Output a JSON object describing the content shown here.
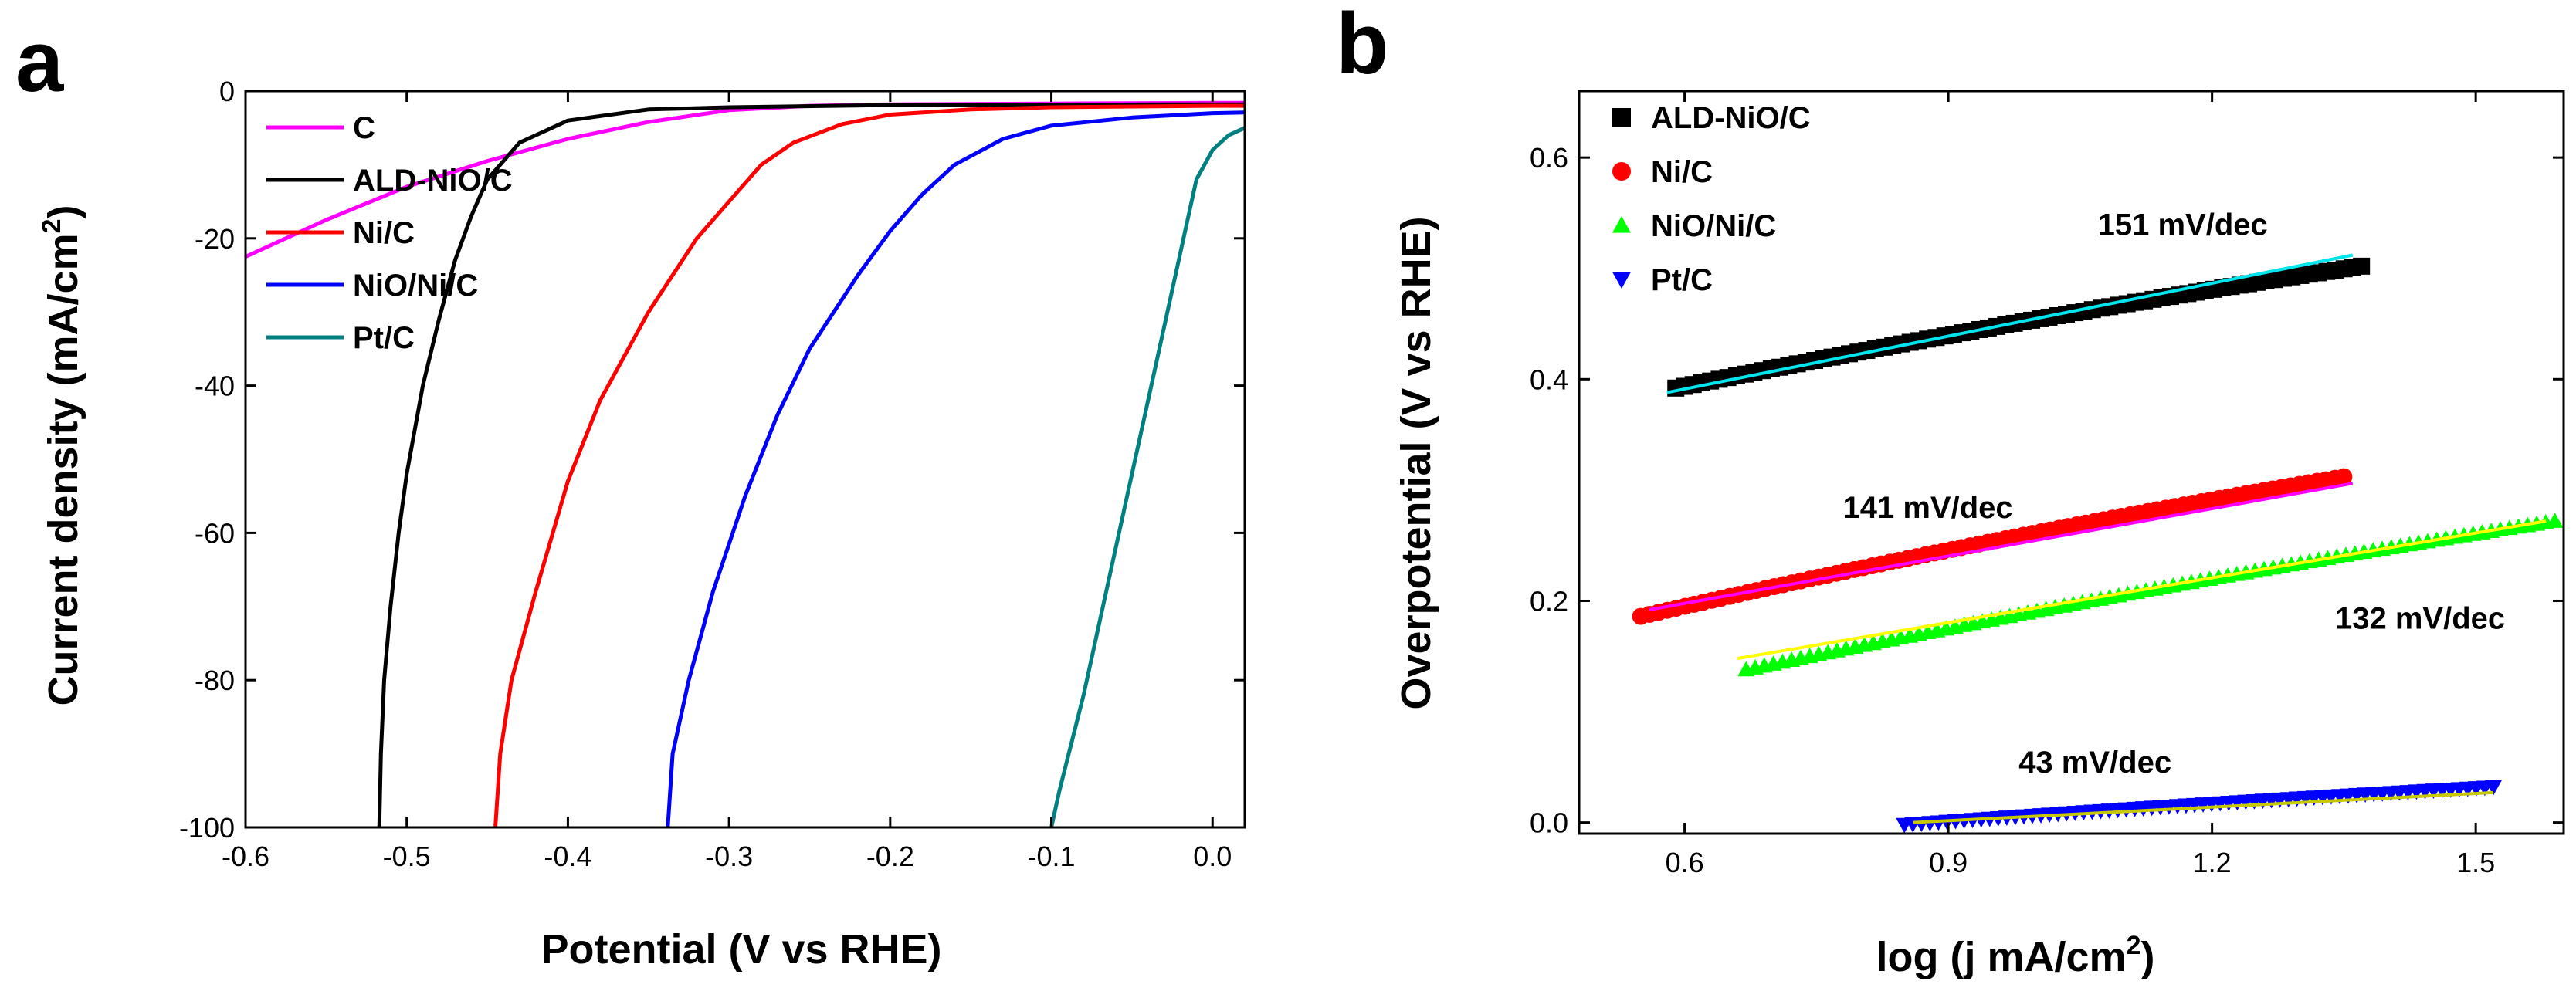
{
  "chart_data": [
    {
      "id": "a",
      "panel_label": "a",
      "type": "line",
      "xlabel": "Potential (V vs RHE)",
      "ylabel_main": "Current density (mA/cm",
      "ylabel_sup": "2",
      "ylabel_end": ")",
      "xlim": [
        -0.6,
        0.02
      ],
      "ylim": [
        -100,
        0
      ],
      "xticks": [
        -0.6,
        -0.5,
        -0.4,
        -0.3,
        -0.2,
        -0.1,
        0.0
      ],
      "xtick_labels": [
        "-0.6",
        "-0.5",
        "-0.4",
        "-0.3",
        "-0.2",
        "-0.1",
        "0.0"
      ],
      "yticks": [
        0,
        -20,
        -40,
        -60,
        -80,
        -100
      ],
      "ytick_labels": [
        "0",
        "-20",
        "-40",
        "-60",
        "-80",
        "-100"
      ],
      "legend_position": "top-left",
      "series": [
        {
          "name": "C",
          "color": "#ff00ff",
          "x": [
            -0.6,
            -0.55,
            -0.5,
            -0.45,
            -0.4,
            -0.35,
            -0.3,
            -0.25,
            -0.2,
            -0.1,
            0.0,
            0.02
          ],
          "y": [
            -22.5,
            -17.5,
            -13.0,
            -9.5,
            -6.5,
            -4.2,
            -2.6,
            -2.0,
            -1.8,
            -1.7,
            -1.6,
            -1.6
          ]
        },
        {
          "name": "ALD-NiO/C",
          "color": "#000000",
          "x": [
            -0.517,
            -0.516,
            -0.514,
            -0.51,
            -0.505,
            -0.5,
            -0.49,
            -0.48,
            -0.47,
            -0.46,
            -0.45,
            -0.43,
            -0.4,
            -0.35,
            -0.3,
            -0.2,
            0.0,
            0.02
          ],
          "y": [
            -100,
            -90,
            -80,
            -70,
            -60,
            -52,
            -40,
            -31,
            -23,
            -17,
            -12,
            -7,
            -4,
            -2.5,
            -2.2,
            -1.9,
            -1.8,
            -1.8
          ]
        },
        {
          "name": "Ni/C",
          "color": "#ff0000",
          "x": [
            -0.445,
            -0.442,
            -0.435,
            -0.42,
            -0.4,
            -0.38,
            -0.35,
            -0.32,
            -0.3,
            -0.28,
            -0.26,
            -0.23,
            -0.2,
            -0.15,
            -0.1,
            0.0,
            0.02
          ],
          "y": [
            -100,
            -90,
            -80,
            -68,
            -53,
            -42,
            -30,
            -20,
            -15,
            -10,
            -7,
            -4.5,
            -3.2,
            -2.5,
            -2.2,
            -2.0,
            -2.0
          ]
        },
        {
          "name": "NiO/Ni/C",
          "color": "#0000ff",
          "x": [
            -0.338,
            -0.335,
            -0.325,
            -0.31,
            -0.29,
            -0.27,
            -0.25,
            -0.22,
            -0.2,
            -0.18,
            -0.16,
            -0.13,
            -0.1,
            -0.05,
            0.0,
            0.02
          ],
          "y": [
            -100,
            -90,
            -80,
            -68,
            -55,
            -44,
            -35,
            -25,
            -19,
            -14,
            -10,
            -6.5,
            -4.7,
            -3.6,
            -3.0,
            -2.9
          ]
        },
        {
          "name": "Pt/C",
          "color": "#008080",
          "x": [
            -0.1,
            -0.095,
            -0.08,
            -0.06,
            -0.04,
            -0.02,
            -0.01,
            0.0,
            0.01,
            0.02
          ],
          "y": [
            -100,
            -95,
            -82,
            -62,
            -42,
            -22,
            -12,
            -8,
            -6,
            -5
          ]
        }
      ]
    },
    {
      "id": "b",
      "panel_label": "b",
      "type": "scatter",
      "xlabel_main": "log (j mA/cm",
      "xlabel_sup": "2",
      "xlabel_end": ")",
      "ylabel": "Overpotential (V vs RHE)",
      "xlim": [
        0.48,
        1.6
      ],
      "ylim": [
        -0.01,
        0.66
      ],
      "xticks": [
        0.6,
        0.9,
        1.2,
        1.5
      ],
      "xtick_labels": [
        "0.6",
        "0.9",
        "1.2",
        "1.5"
      ],
      "yticks": [
        0.0,
        0.2,
        0.4,
        0.6
      ],
      "ytick_labels": [
        "0.0",
        "0.2",
        "0.4",
        "0.6"
      ],
      "legend_position": "top-left",
      "series": [
        {
          "name": "ALD-NiO/C",
          "color": "#000000",
          "marker": "square",
          "x_range": [
            0.59,
            1.37
          ],
          "y_range": [
            0.392,
            0.502
          ],
          "n": 80,
          "fit_color": "#00e5ee",
          "fit_x": [
            0.58,
            1.36
          ],
          "fit_y": [
            0.388,
            0.512
          ],
          "annotation": "151 mV/dec",
          "ann_x": 1.07,
          "ann_y": 0.53
        },
        {
          "name": "Ni/C",
          "color": "#ff0000",
          "marker": "circle",
          "x_range": [
            0.55,
            1.35
          ],
          "y_range": [
            0.186,
            0.312
          ],
          "n": 80,
          "fit_color": "#ff00ff",
          "fit_x": [
            0.56,
            1.36
          ],
          "fit_y": [
            0.192,
            0.306
          ],
          "annotation": "141 mV/dec",
          "ann_x": 0.78,
          "ann_y": 0.275
        },
        {
          "name": "NiO/Ni/C",
          "color": "#00ff00",
          "marker": "triangle-up",
          "x_range": [
            0.67,
            1.59
          ],
          "y_range": [
            0.138,
            0.272
          ],
          "n": 90,
          "fit_color": "#ffff00",
          "fit_x": [
            0.66,
            1.58
          ],
          "fit_y": [
            0.148,
            0.272
          ],
          "annotation": "132 mV/dec",
          "ann_x": 1.34,
          "ann_y": 0.175
        },
        {
          "name": "Pt/C",
          "color": "#0000ff",
          "marker": "triangle-down",
          "x_range": [
            0.85,
            1.52
          ],
          "y_range": [
            -0.002,
            0.032
          ],
          "n": 70,
          "fit_color": "#c8c800",
          "fit_x": [
            0.86,
            1.52
          ],
          "fit_y": [
            0.0,
            0.027
          ],
          "annotation": "43 mV/dec",
          "ann_x": 0.98,
          "ann_y": 0.045
        }
      ]
    }
  ]
}
